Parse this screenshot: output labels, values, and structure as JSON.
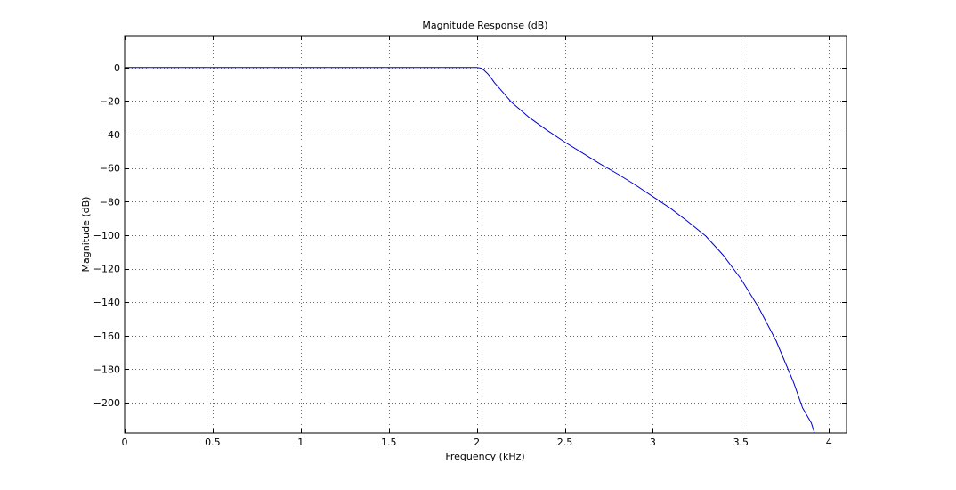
{
  "chart_data": {
    "type": "line",
    "title": "Magnitude Response (dB)",
    "xlabel": "Frequency (kHz)",
    "ylabel": "Magnitude (dB)",
    "xlim": [
      0,
      4.1
    ],
    "ylim": [
      -218,
      19
    ],
    "grid": true,
    "x_ticks": [
      0,
      0.5,
      1,
      1.5,
      2,
      2.5,
      3,
      3.5,
      4
    ],
    "x_tick_labels": [
      "0",
      "0.5",
      "1",
      "1.5",
      "2",
      "2.5",
      "3",
      "3.5",
      "4"
    ],
    "y_ticks": [
      0,
      -20,
      -40,
      -60,
      -80,
      -100,
      -120,
      -140,
      -160,
      -180,
      -200
    ],
    "y_tick_labels": [
      "0",
      "−20",
      "−40",
      "−60",
      "−80",
      "−100",
      "−120",
      "−140",
      "−160",
      "−180",
      "−200"
    ],
    "colors": {
      "line": "#0000cc",
      "axes": "#000000",
      "grid": "#6a6a6a"
    },
    "series": [
      {
        "x": [
          0,
          0.5,
          1,
          1.5,
          1.9,
          2.0,
          2.02,
          2.04,
          2.06,
          2.08,
          2.1,
          2.15,
          2.2,
          2.3,
          2.4,
          2.5,
          2.6,
          2.7,
          2.8,
          2.9,
          3.0,
          3.1,
          3.2,
          3.3,
          3.4,
          3.5,
          3.6,
          3.7,
          3.8,
          3.85,
          3.9,
          3.93
        ],
        "values": [
          0,
          0,
          0,
          0,
          0,
          0,
          -0.3,
          -1.5,
          -3.5,
          -6,
          -9,
          -15,
          -21,
          -30,
          -37.5,
          -44.5,
          -51,
          -57.5,
          -63.5,
          -70,
          -77,
          -84,
          -92,
          -100.5,
          -112,
          -126,
          -143,
          -163,
          -188,
          -203,
          -212,
          -222
        ]
      }
    ]
  }
}
